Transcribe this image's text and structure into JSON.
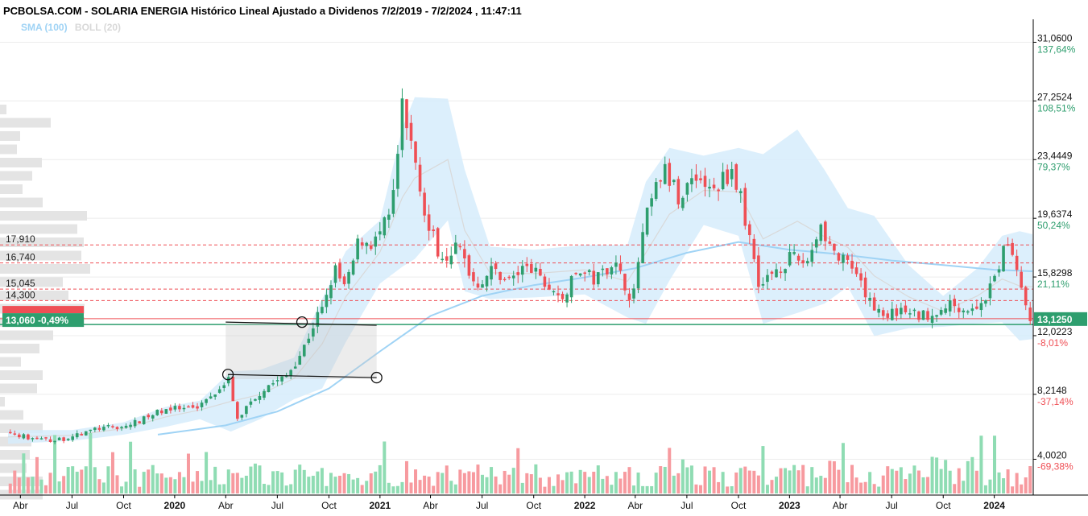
{
  "header": {
    "title": "PCBOLSA.COM - SOLARIA ENERGIA Histórico Lineal Ajustado a Dividenos 7/2/2019 - 7/2/2024 , 11:47:11"
  },
  "legend": [
    {
      "label": "SMA (100)",
      "color": "#9fd3f5"
    },
    {
      "label": "BOLL (20)",
      "color": "#d0d0d0"
    }
  ],
  "colors": {
    "up": "#2e9e6e",
    "down": "#ef4f55",
    "sma": "#9fd3f5",
    "band": "#d6ecfb",
    "axis": "#000000"
  },
  "chart_data": {
    "type": "line",
    "title": "PCBOLSA.COM - SOLARIA ENERGIA Histórico Lineal Ajustado a Dividenos 7/2/2019 - 7/2/2024 , 11:47:11",
    "x_ticks": [
      "Abr",
      "Jul",
      "Oct",
      "2020",
      "Abr",
      "Jul",
      "Oct",
      "2021",
      "Abr",
      "Jul",
      "Oct",
      "2022",
      "Abr",
      "Jul",
      "Oct",
      "2023",
      "Abr",
      "Jul",
      "Oct",
      "2024"
    ],
    "x_tick_bold": [
      false,
      false,
      false,
      true,
      false,
      false,
      false,
      true,
      false,
      false,
      false,
      true,
      false,
      false,
      false,
      true,
      false,
      false,
      false,
      true
    ],
    "y_ticks": [
      {
        "value": 31.06,
        "label": "31,0600",
        "pct": "137,64%"
      },
      {
        "value": 27.2524,
        "label": "27,2524",
        "pct": "108,51%"
      },
      {
        "value": 23.4449,
        "label": "23,4449",
        "pct": "79,37%"
      },
      {
        "value": 19.6374,
        "label": "19,6374",
        "pct": "50,24%"
      },
      {
        "value": 15.8298,
        "label": "15,8298",
        "pct": "21,11%"
      },
      {
        "value": 12.0223,
        "label": "12,0223",
        "pct": "-8,01%"
      },
      {
        "value": 8.2148,
        "label": "8,2148",
        "pct": "-37,14%"
      },
      {
        "value": 4.002,
        "label": "4,0020",
        "pct": "-69,38%"
      }
    ],
    "ylim": [
      4.002,
      31.06
    ],
    "x_range": [
      "2019-02-07",
      "2024-02-07"
    ],
    "last_price": {
      "value": 13.125,
      "label": "13,1250"
    },
    "current_marker": {
      "value": 13.06,
      "label": "13,060 -0,49%"
    },
    "levels": [
      {
        "value": 17.91,
        "label": "17,910"
      },
      {
        "value": 16.74,
        "label": "16,740"
      },
      {
        "value": 15.045,
        "label": "15,045"
      },
      {
        "value": 14.3,
        "label": "14,300"
      },
      {
        "value": 13.125,
        "label": ""
      }
    ],
    "price_path": [
      [
        "2019-02-07",
        5.8
      ],
      [
        "2019-03-15",
        5.4
      ],
      [
        "2019-05-01",
        5.2
      ],
      [
        "2019-06-15",
        5.6
      ],
      [
        "2019-07-15",
        6.0
      ],
      [
        "2019-09-01",
        6.1
      ],
      [
        "2019-10-01",
        6.5
      ],
      [
        "2019-11-15",
        7.3
      ],
      [
        "2020-01-01",
        7.2
      ],
      [
        "2020-02-15",
        8.5
      ],
      [
        "2020-03-05",
        9.4
      ],
      [
        "2020-03-20",
        6.5
      ],
      [
        "2020-04-15",
        7.8
      ],
      [
        "2020-05-15",
        8.8
      ],
      [
        "2020-06-15",
        9.3
      ],
      [
        "2020-07-15",
        11.0
      ],
      [
        "2020-08-10",
        13.2
      ],
      [
        "2020-08-25",
        14.0
      ],
      [
        "2020-09-10",
        16.4
      ],
      [
        "2020-10-01",
        15.0
      ],
      [
        "2020-10-25",
        18.3
      ],
      [
        "2020-11-20",
        18.0
      ],
      [
        "2020-12-15",
        19.5
      ],
      [
        "2020-12-29",
        22.0
      ],
      [
        "2021-01-08",
        26.9
      ],
      [
        "2021-01-20",
        25.0
      ],
      [
        "2021-02-05",
        23.0
      ],
      [
        "2021-02-25",
        19.0
      ],
      [
        "2021-03-20",
        17.2
      ],
      [
        "2021-04-20",
        17.8
      ],
      [
        "2021-05-20",
        15.3
      ],
      [
        "2021-06-20",
        16.3
      ],
      [
        "2021-07-20",
        15.6
      ],
      [
        "2021-08-20",
        16.6
      ],
      [
        "2021-09-20",
        15.4
      ],
      [
        "2021-10-20",
        14.3
      ],
      [
        "2021-11-20",
        16.3
      ],
      [
        "2021-12-20",
        15.6
      ],
      [
        "2022-01-20",
        16.9
      ],
      [
        "2022-02-25",
        14.3
      ],
      [
        "2022-03-10",
        17.8
      ],
      [
        "2022-03-25",
        20.2
      ],
      [
        "2022-04-20",
        22.8
      ],
      [
        "2022-05-20",
        20.8
      ],
      [
        "2022-06-15",
        22.7
      ],
      [
        "2022-07-15",
        21.2
      ],
      [
        "2022-08-20",
        22.9
      ],
      [
        "2022-09-10",
        20.2
      ],
      [
        "2022-09-25",
        17.6
      ],
      [
        "2022-10-10",
        15.1
      ],
      [
        "2022-11-01",
        16.2
      ],
      [
        "2022-12-01",
        17.0
      ],
      [
        "2023-01-01",
        16.8
      ],
      [
        "2023-01-25",
        19.3
      ],
      [
        "2023-02-20",
        17.2
      ],
      [
        "2023-03-20",
        16.4
      ],
      [
        "2023-04-20",
        14.3
      ],
      [
        "2023-05-20",
        13.4
      ],
      [
        "2023-06-20",
        13.6
      ],
      [
        "2023-07-20",
        13.3
      ],
      [
        "2023-08-20",
        13.6
      ],
      [
        "2023-09-20",
        14.1
      ],
      [
        "2023-10-20",
        13.6
      ],
      [
        "2023-11-20",
        14.6
      ],
      [
        "2023-12-10",
        16.7
      ],
      [
        "2023-12-28",
        18.3
      ],
      [
        "2024-01-15",
        15.9
      ],
      [
        "2024-01-28",
        13.6
      ],
      [
        "2024-02-07",
        13.06
      ]
    ],
    "sma_path": [
      [
        "2019-11-01",
        5.6
      ],
      [
        "2020-03-01",
        6.2
      ],
      [
        "2020-06-01",
        7.1
      ],
      [
        "2020-09-01",
        8.6
      ],
      [
        "2020-12-01",
        11.0
      ],
      [
        "2021-03-01",
        13.3
      ],
      [
        "2021-06-01",
        14.6
      ],
      [
        "2021-09-01",
        15.3
      ],
      [
        "2021-12-01",
        15.8
      ],
      [
        "2022-03-01",
        16.4
      ],
      [
        "2022-06-01",
        17.4
      ],
      [
        "2022-09-01",
        18.1
      ],
      [
        "2022-12-01",
        17.6
      ],
      [
        "2023-03-01",
        17.3
      ],
      [
        "2023-06-01",
        16.9
      ],
      [
        "2023-09-01",
        16.6
      ],
      [
        "2023-12-01",
        16.3
      ],
      [
        "2024-02-07",
        16.2
      ]
    ],
    "boll_path": [
      [
        "2019-02-07",
        5.9,
        5.0
      ],
      [
        "2019-06-01",
        5.9,
        5.2
      ],
      [
        "2019-09-01",
        6.4,
        5.6
      ],
      [
        "2019-11-15",
        7.4,
        6.1
      ],
      [
        "2020-01-15",
        7.8,
        6.6
      ],
      [
        "2020-03-10",
        9.7,
        5.8
      ],
      [
        "2020-05-01",
        9.8,
        6.6
      ],
      [
        "2020-07-01",
        10.6,
        7.9
      ],
      [
        "2020-08-20",
        14.4,
        8.6
      ],
      [
        "2020-10-01",
        17.5,
        11.6
      ],
      [
        "2020-12-01",
        19.5,
        15.4
      ],
      [
        "2021-01-10",
        25.5,
        16.5
      ],
      [
        "2021-02-01",
        27.5,
        17.0
      ],
      [
        "2021-04-01",
        27.4,
        19.5
      ],
      [
        "2021-05-01",
        22.8,
        14.9
      ],
      [
        "2021-06-15",
        17.8,
        14.4
      ],
      [
        "2021-09-01",
        17.6,
        14.5
      ],
      [
        "2021-12-01",
        17.9,
        14.7
      ],
      [
        "2022-02-15",
        17.9,
        13.2
      ],
      [
        "2022-03-20",
        22.0,
        12.8
      ],
      [
        "2022-05-01",
        24.2,
        15.6
      ],
      [
        "2022-07-01",
        23.7,
        19.2
      ],
      [
        "2022-09-01",
        24.2,
        18.5
      ],
      [
        "2022-10-15",
        23.8,
        12.8
      ],
      [
        "2022-12-15",
        25.4,
        13.5
      ],
      [
        "2023-02-01",
        22.8,
        14.1
      ],
      [
        "2023-03-15",
        20.3,
        15.2
      ],
      [
        "2023-05-01",
        19.8,
        12.0
      ],
      [
        "2023-07-01",
        16.6,
        12.5
      ],
      [
        "2023-09-01",
        14.6,
        12.6
      ],
      [
        "2023-11-01",
        16.4,
        12.8
      ],
      [
        "2023-12-15",
        18.5,
        12.9
      ],
      [
        "2024-01-15",
        18.8,
        11.7
      ],
      [
        "2024-02-07",
        18.6,
        11.8
      ]
    ],
    "annotations": {
      "rectangle": {
        "x0": "2020-03-01",
        "x1": "2020-11-25",
        "y_top": 12.8,
        "y_bottom": 9.2
      },
      "lines": [
        {
          "from": [
            "2020-03-01",
            12.9
          ],
          "to": [
            "2020-11-25",
            12.7
          ]
        },
        {
          "from": [
            "2020-03-05",
            9.5
          ],
          "to": [
            "2020-11-25",
            9.3
          ]
        }
      ],
      "circles": [
        {
          "at": [
            "2020-07-15",
            12.9
          ]
        },
        {
          "at": [
            "2020-03-05",
            9.5
          ]
        },
        {
          "at": [
            "2020-11-25",
            9.3
          ]
        }
      ]
    }
  }
}
